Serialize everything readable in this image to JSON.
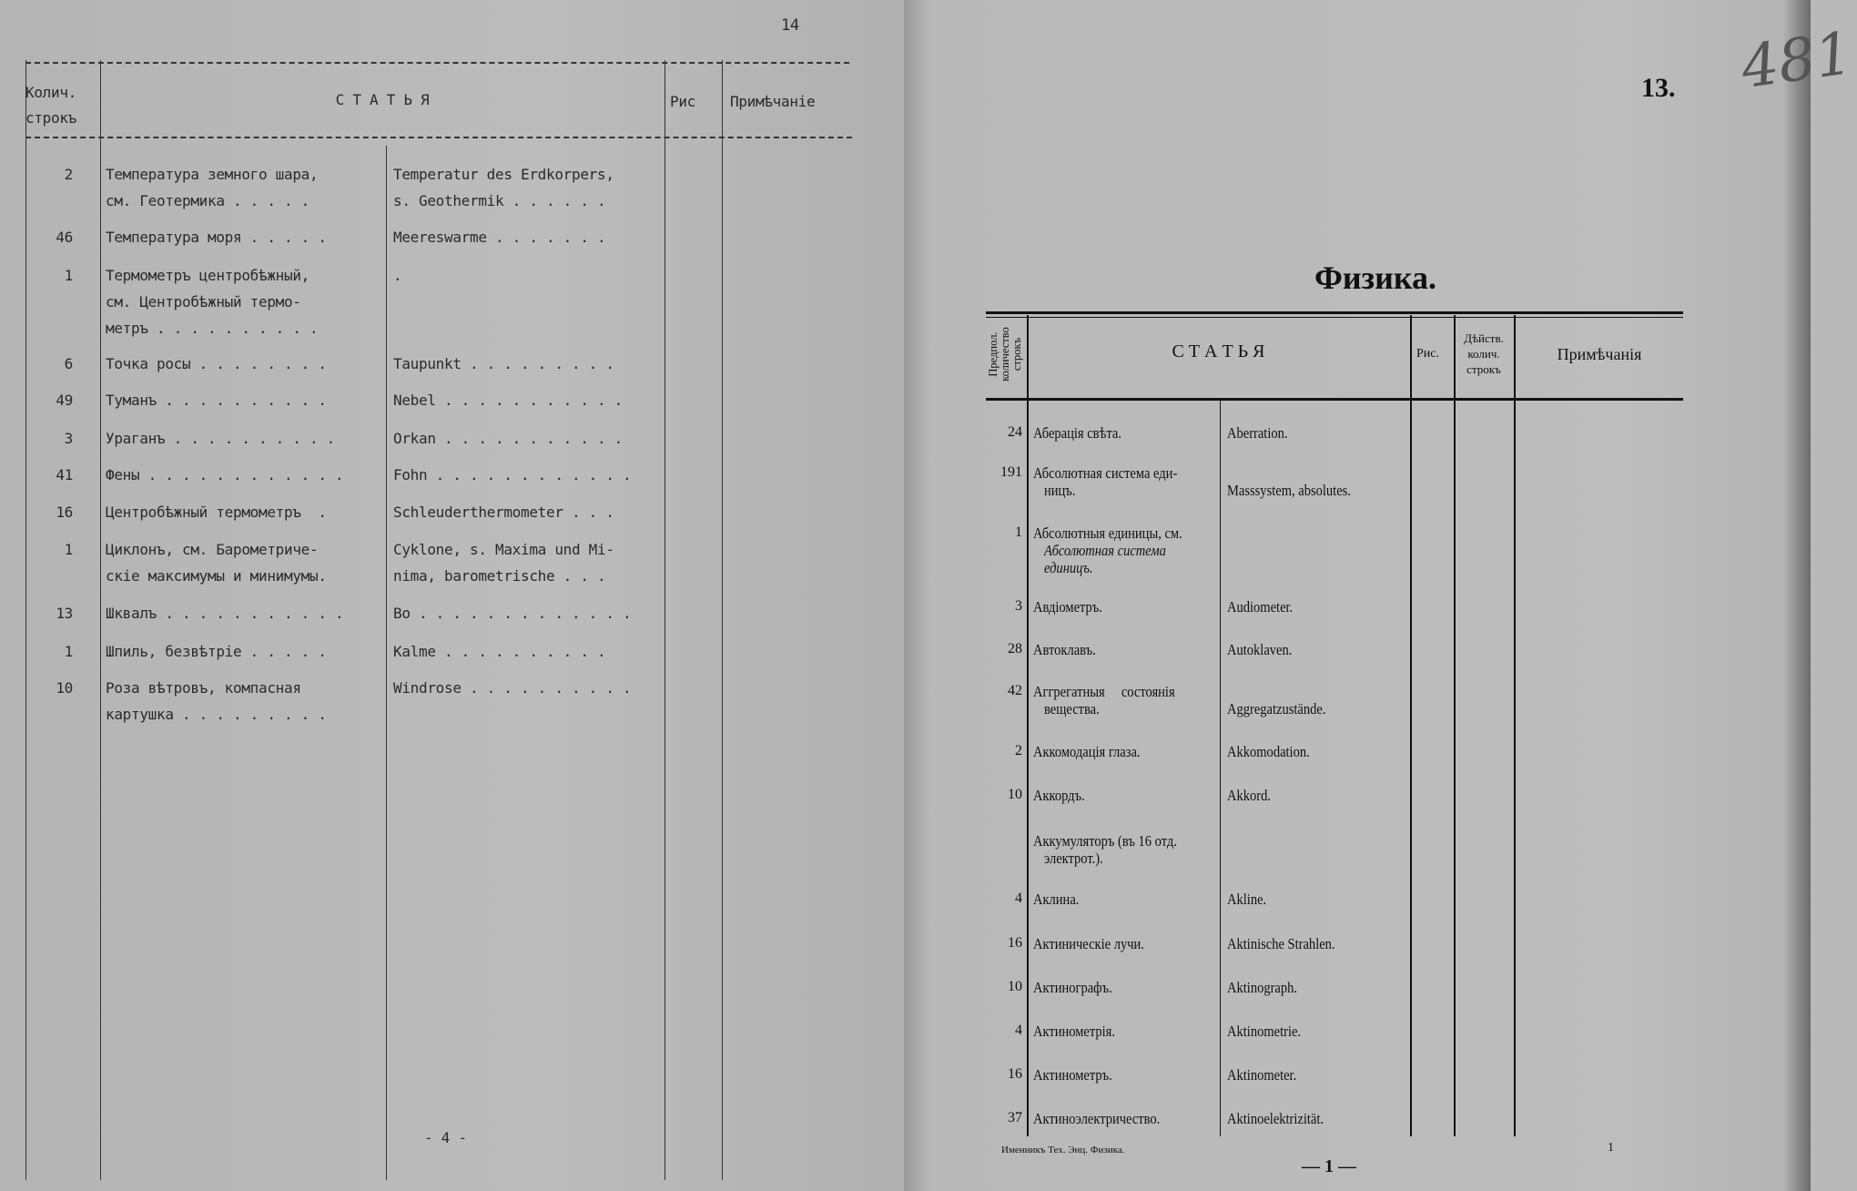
{
  "left_page": {
    "page_number": "14",
    "footer_number": "- 4 -",
    "header": {
      "count": [
        "Колич.",
        "строкъ"
      ],
      "article": "С Т А Т Ь Я",
      "fig": "Рис",
      "note": "Примѣчаніе"
    },
    "rows": [
      {
        "count": "2",
        "ru": [
          "Температура земного шара,",
          "см. Геотермика . . . . ."
        ],
        "de": [
          "Temperatur des Erdkorpers,",
          "s. Geothermik . . . . . ."
        ]
      },
      {
        "count": "46",
        "ru": [
          "Температура моря . . . . ."
        ],
        "de": [
          "Meereswarme . . . . . . ."
        ]
      },
      {
        "count": "1",
        "ru": [
          "Термометръ центробѣжный,",
          "см. Центробѣжный термо-",
          "метръ . . . . . . . . . ."
        ],
        "de": [
          "."
        ]
      },
      {
        "count": "6",
        "ru": [
          "Точка росы . . . . . . . ."
        ],
        "de": [
          "Taupunkt . . . . . . . . ."
        ]
      },
      {
        "count": "49",
        "ru": [
          "Туманъ . . . . . . . . . ."
        ],
        "de": [
          "Nebel . . . . . . . . . . ."
        ]
      },
      {
        "count": "3",
        "ru": [
          "Ураганъ . . . . . . . . . ."
        ],
        "de": [
          "Orkan . . . . . . . . . . ."
        ]
      },
      {
        "count": "41",
        "ru": [
          "Фены . . . . . . . . . . . ."
        ],
        "de": [
          "Fohn . . . . . . . . . . . ."
        ]
      },
      {
        "count": "16",
        "ru": [
          "Центробѣжный термометръ  ."
        ],
        "de": [
          "Schleuderthermometer . . ."
        ]
      },
      {
        "count": "1",
        "ru": [
          "Циклонъ, см. Барометриче-",
          "скіе максимумы и минимумы."
        ],
        "de": [
          "Cyklone, s. Maxima und Mi-",
          "nima, barometrische . . ."
        ]
      },
      {
        "count": "13",
        "ru": [
          "Шквалъ . . . . . . . . . . ."
        ],
        "de": [
          "Bo . . . . . . . . . . . . ."
        ]
      },
      {
        "count": "1",
        "ru": [
          "Шпиль, безвѣтріе . . . . ."
        ],
        "de": [
          "Kalme . . . . . . . . . ."
        ]
      },
      {
        "count": "10",
        "ru": [
          "Роза вѣтровъ, компасная",
          "картушка . . . . . . . . ."
        ],
        "de": [
          "Windrose . . . . . . . . . ."
        ]
      }
    ]
  },
  "right_page": {
    "page_number": "13.",
    "handwritten_number": "481",
    "title": "Физика.",
    "header": {
      "count": [
        "Предпол.",
        "количество",
        "строкъ"
      ],
      "article": "С Т А Т Ь Я",
      "fig": "Рис.",
      "actual": [
        "Дѣйств.",
        "колич.",
        "строкъ"
      ],
      "note": "Примѣчанія"
    },
    "rows": [
      {
        "count": "24",
        "ru": [
          "Аберація свѣта."
        ],
        "de": [
          "Aberration."
        ]
      },
      {
        "count": "191",
        "ru": [
          "Абсолютная система еди-",
          "ницъ."
        ],
        "de": [
          "",
          "Masssystem, absolutes."
        ]
      },
      {
        "count": "1",
        "ru": [
          "Абсолютныя единицы, см."
        ],
        "ru_ref": [
          "Абсолютная система",
          "единицъ."
        ],
        "de": []
      },
      {
        "count": "3",
        "ru": [
          "Авдіометръ."
        ],
        "de": [
          "Audiometer."
        ]
      },
      {
        "count": "28",
        "ru": [
          "Автоклавъ."
        ],
        "de": [
          "Autoklaven."
        ]
      },
      {
        "count": "42",
        "ru": [
          "Аггрегатныя     состоянія",
          "вещества."
        ],
        "de": [
          "",
          "Aggregatzustände."
        ]
      },
      {
        "count": "2",
        "ru": [
          "Аккомодація глаза."
        ],
        "de": [
          "Akkomodation."
        ]
      },
      {
        "count": "10",
        "ru": [
          "Аккордъ."
        ],
        "de": [
          "Akkord."
        ]
      },
      {
        "count": "",
        "ru": [
          "Аккумуляторъ (въ 16 отд.",
          "электрот.)."
        ],
        "de": []
      },
      {
        "count": "4",
        "ru": [
          "Аклина."
        ],
        "de": [
          "Akline."
        ]
      },
      {
        "count": "16",
        "ru": [
          "Актиническіе лучи."
        ],
        "de": [
          "Aktinische Strahlen."
        ]
      },
      {
        "count": "10",
        "ru": [
          "Актинографъ."
        ],
        "de": [
          "Aktinograph."
        ]
      },
      {
        "count": "4",
        "ru": [
          "Актинометрія."
        ],
        "de": [
          "Aktinometrie."
        ]
      },
      {
        "count": "16",
        "ru": [
          "Актинометръ."
        ],
        "de": [
          "Aktinometer."
        ]
      },
      {
        "count": "37",
        "ru": [
          "Актиноэлектричество."
        ],
        "de": [
          "Aktinoelektrizität."
        ]
      }
    ],
    "footer_left": "Именникъ Тех. Энц. Физика.",
    "footer_sheet": "1",
    "footer_center": "— 1 —"
  }
}
